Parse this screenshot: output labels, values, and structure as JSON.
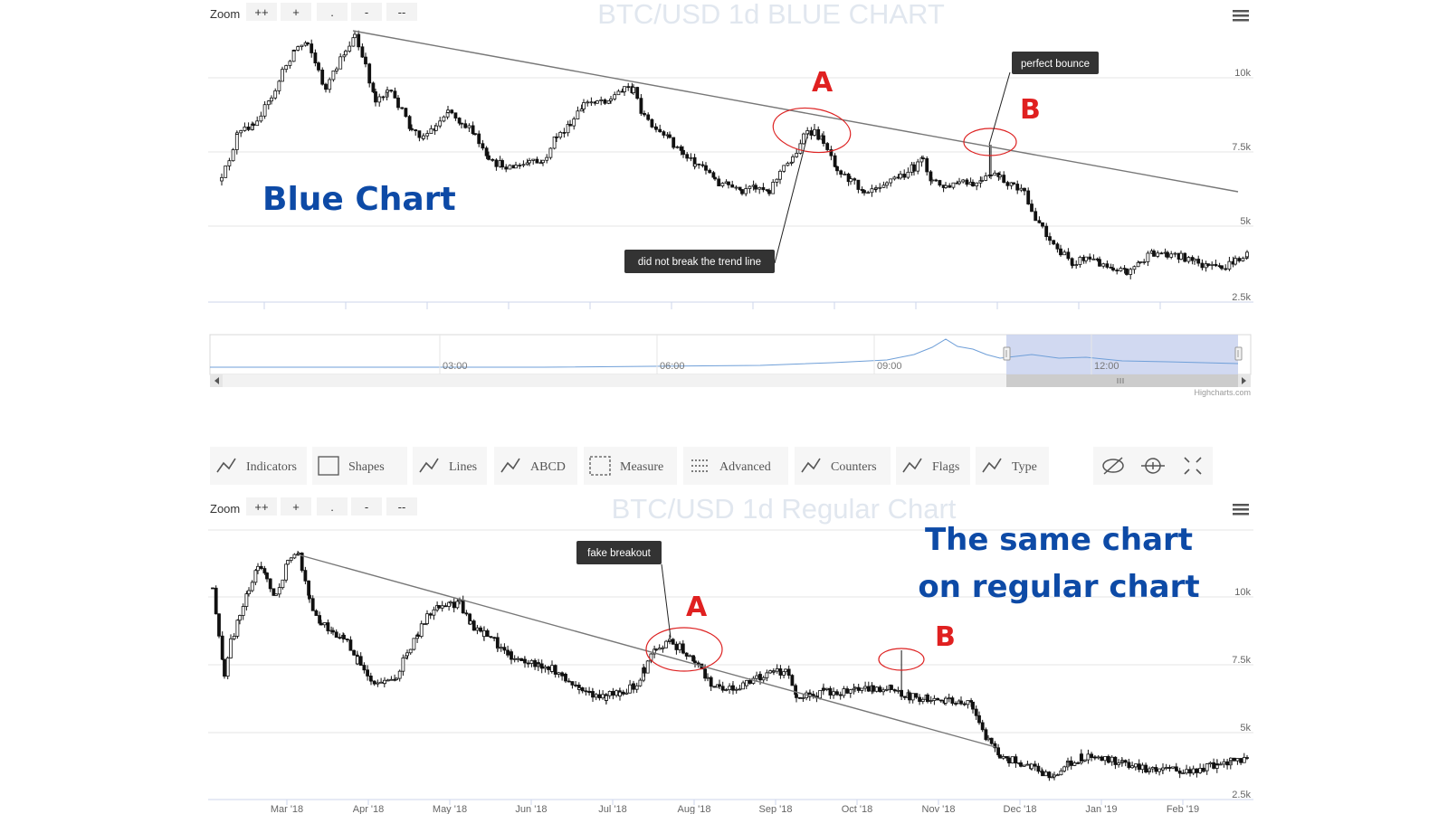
{
  "chart_data": [
    {
      "type": "candlestick",
      "title": "BTC/USD 1d BLUE CHART",
      "y_ticks": [
        "10k",
        "7.5k",
        "5k",
        "2.5k"
      ],
      "y_tick_values": [
        10000,
        7500,
        5000,
        2500
      ],
      "navigator_ticks": [
        "03:00",
        "06:00",
        "09:00",
        "12:00"
      ],
      "credit": "Highcharts.com",
      "zoom_label": "Zoom",
      "zoom_buttons": [
        "++",
        "+",
        ".",
        "-",
        "--"
      ],
      "overlay_text": "Blue Chart",
      "annotations": [
        {
          "text": "did not break the trend line"
        },
        {
          "text": "perfect bounce"
        }
      ],
      "markers": [
        "A",
        "B"
      ]
    },
    {
      "type": "candlestick",
      "title": "BTC/USD 1d Regular Chart",
      "y_ticks": [
        "10k",
        "7.5k",
        "5k",
        "2.5k"
      ],
      "y_tick_values": [
        10000,
        7500,
        5000,
        2500
      ],
      "x_ticks": [
        "Mar '18",
        "Apr '18",
        "May '18",
        "Jun '18",
        "Jul '18",
        "Aug '18",
        "Sep '18",
        "Oct '18",
        "Nov '18",
        "Dec '18",
        "Jan '19",
        "Feb '19"
      ],
      "zoom_label": "Zoom",
      "zoom_buttons": [
        "++",
        "+",
        ".",
        "-",
        "--"
      ],
      "overlay_text": [
        "The same chart",
        "on regular chart"
      ],
      "annotations": [
        {
          "text": "fake breakout"
        }
      ],
      "markers": [
        "A",
        "B"
      ],
      "series_approx": {
        "dates": [
          "Mar '18",
          "Apr '18",
          "May '18",
          "Jun '18",
          "Jul '18",
          "Aug '18",
          "Sep '18",
          "Oct '18",
          "Nov '18",
          "Dec '18",
          "Jan '19",
          "Feb '19"
        ],
        "close": [
          11000,
          7000,
          9200,
          7500,
          6400,
          7700,
          7000,
          6600,
          6400,
          3800,
          3700,
          3500
        ]
      }
    }
  ],
  "toolbar": {
    "items": [
      {
        "label": "Indicators",
        "icon": "indicators-icon"
      },
      {
        "label": "Shapes",
        "icon": "shapes-icon"
      },
      {
        "label": "Lines",
        "icon": "lines-icon"
      },
      {
        "label": "ABCD",
        "icon": "abcd-icon"
      },
      {
        "label": "Measure",
        "icon": "measure-icon"
      },
      {
        "label": "Advanced",
        "icon": "advanced-icon"
      },
      {
        "label": "Counters",
        "icon": "counters-icon"
      },
      {
        "label": "Flags",
        "icon": "flags-icon"
      },
      {
        "label": "Type",
        "icon": "type-icon"
      }
    ],
    "right_icons": [
      "hide-icon",
      "zoom-cursor-icon",
      "fullscreen-icon"
    ]
  }
}
